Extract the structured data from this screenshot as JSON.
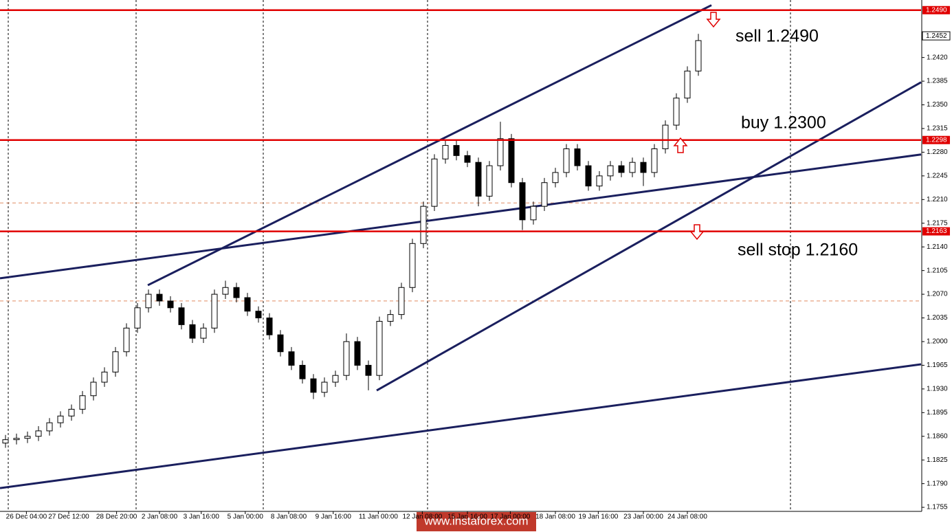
{
  "chart_data": {
    "type": "candlestick",
    "annotations": [
      "sell 1.2490",
      "buy 1.2300",
      "sell stop 1.2160"
    ],
    "watermark": "www.instaforex.com",
    "xlim": [
      -0.5,
      83.25
    ],
    "ylim": [
      1.1749,
      1.2505
    ],
    "yticks": [
      {
        "value": 1.242,
        "label": "1.2420"
      },
      {
        "value": 1.2385,
        "label": "1.2385"
      },
      {
        "value": 1.235,
        "label": "1.2350"
      },
      {
        "value": 1.2315,
        "label": "1.2315"
      },
      {
        "value": 1.228,
        "label": "1.2280"
      },
      {
        "value": 1.2245,
        "label": "1.2245"
      },
      {
        "value": 1.221,
        "label": "1.2210"
      },
      {
        "value": 1.2175,
        "label": "1.2175"
      },
      {
        "value": 1.214,
        "label": "1.2140"
      },
      {
        "value": 1.2105,
        "label": "1.2105"
      },
      {
        "value": 1.207,
        "label": "1.2070"
      },
      {
        "value": 1.2035,
        "label": "1.2035"
      },
      {
        "value": 1.2,
        "label": "1.2000"
      },
      {
        "value": 1.1965,
        "label": "1.1965"
      },
      {
        "value": 1.193,
        "label": "1.1930"
      },
      {
        "value": 1.1895,
        "label": "1.1895"
      },
      {
        "value": 1.186,
        "label": "1.1860"
      },
      {
        "value": 1.1825,
        "label": "1.1825"
      },
      {
        "value": 1.179,
        "label": "1.1790"
      },
      {
        "value": 1.1755,
        "label": "1.1755"
      }
    ],
    "xticks": [
      {
        "value": 1.9,
        "label": "26 Dec 04:00"
      },
      {
        "value": 5.75,
        "label": "27 Dec 12:00"
      },
      {
        "value": 10.1,
        "label": "28 Dec 20:00"
      },
      {
        "value": 14,
        "label": "2 Jan 08:00"
      },
      {
        "value": 17.8,
        "label": "3 Jan 16:00"
      },
      {
        "value": 21.8,
        "label": "5 Jan 00:00"
      },
      {
        "value": 25.75,
        "label": "8 Jan 08:00"
      },
      {
        "value": 29.8,
        "label": "9 Jan 16:00"
      },
      {
        "value": 33.9,
        "label": "11 Jan 00:00"
      },
      {
        "value": 37.9,
        "label": "12 Jan 08:00"
      },
      {
        "value": 42,
        "label": "15 Jan 16:00"
      },
      {
        "value": 45.9,
        "label": "17 Jan 00:00"
      },
      {
        "value": 50,
        "label": "18 Jan 08:00"
      },
      {
        "value": 53.9,
        "label": "19 Jan 16:00"
      },
      {
        "value": 58,
        "label": "23 Jan 00:00"
      },
      {
        "value": 62,
        "label": "24 Jan 08:00"
      }
    ],
    "candles": {
      "open": [
        1.185,
        1.1855,
        1.1857,
        1.186,
        1.1868,
        1.188,
        1.189,
        1.19,
        1.192,
        1.194,
        1.1955,
        1.1985,
        1.202,
        1.205,
        1.207,
        1.206,
        1.205,
        1.2025,
        1.2005,
        1.202,
        1.207,
        1.208,
        1.2065,
        1.2045,
        1.2035,
        1.201,
        1.1985,
        1.1965,
        1.1945,
        1.1925,
        1.194,
        1.195,
        1.2,
        1.1965,
        1.195,
        1.203,
        1.204,
        1.208,
        1.2145,
        1.22,
        1.227,
        1.229,
        1.2275,
        1.2265,
        1.2215,
        1.226,
        1.23,
        1.2235,
        1.218,
        1.22,
        1.2235,
        1.225,
        1.2285,
        1.226,
        1.223,
        1.2245,
        1.226,
        1.225,
        1.2265,
        1.225,
        1.2285,
        1.232,
        1.236,
        1.24
      ],
      "high": [
        1.1862,
        1.1864,
        1.1867,
        1.1875,
        1.1887,
        1.1897,
        1.1907,
        1.1927,
        1.1947,
        1.1962,
        1.1992,
        1.2027,
        1.2057,
        1.2077,
        1.2077,
        1.2067,
        1.2057,
        1.2032,
        1.2027,
        1.2077,
        1.209,
        1.2087,
        1.2072,
        1.2052,
        1.2042,
        1.2017,
        1.1992,
        1.1972,
        1.1952,
        1.1947,
        1.1957,
        1.2012,
        1.2007,
        1.1972,
        1.2037,
        1.2047,
        1.2087,
        1.2152,
        1.2207,
        1.2277,
        1.2297,
        1.2297,
        1.2282,
        1.2272,
        1.2267,
        1.2325,
        1.2307,
        1.2242,
        1.2207,
        1.2242,
        1.2257,
        1.2292,
        1.2292,
        1.2267,
        1.2252,
        1.2267,
        1.2267,
        1.2272,
        1.2272,
        1.2292,
        1.2327,
        1.2367,
        1.2407,
        1.2455
      ],
      "low": [
        1.1843,
        1.1848,
        1.185,
        1.1853,
        1.1861,
        1.1873,
        1.1883,
        1.1893,
        1.1913,
        1.1933,
        1.1948,
        1.1978,
        1.2013,
        1.2043,
        1.2053,
        1.2043,
        1.2018,
        1.1998,
        1.1998,
        1.2013,
        1.2063,
        1.2058,
        1.2038,
        1.2028,
        1.2003,
        1.1978,
        1.1958,
        1.1938,
        1.1915,
        1.1918,
        1.1933,
        1.1943,
        1.1958,
        1.1928,
        1.1943,
        1.2023,
        1.2033,
        1.2073,
        1.2138,
        1.2193,
        1.2263,
        1.2268,
        1.2258,
        1.22,
        1.2208,
        1.2253,
        1.2228,
        1.2165,
        1.2173,
        1.2193,
        1.2228,
        1.2243,
        1.2253,
        1.2223,
        1.2223,
        1.2238,
        1.2243,
        1.2243,
        1.223,
        1.2243,
        1.2278,
        1.2313,
        1.2353,
        1.2393
      ],
      "close": [
        1.1855,
        1.1857,
        1.186,
        1.1868,
        1.188,
        1.189,
        1.19,
        1.192,
        1.194,
        1.1955,
        1.1985,
        1.202,
        1.205,
        1.207,
        1.206,
        1.205,
        1.2025,
        1.2005,
        1.202,
        1.207,
        1.208,
        1.2065,
        1.2045,
        1.2035,
        1.201,
        1.1985,
        1.1965,
        1.1945,
        1.1925,
        1.194,
        1.195,
        1.2,
        1.1965,
        1.195,
        1.203,
        1.204,
        1.208,
        1.2145,
        1.22,
        1.227,
        1.229,
        1.2275,
        1.2265,
        1.2215,
        1.226,
        1.23,
        1.2235,
        1.218,
        1.22,
        1.2235,
        1.225,
        1.2285,
        1.226,
        1.223,
        1.2245,
        1.226,
        1.225,
        1.2265,
        1.225,
        1.2285,
        1.232,
        1.236,
        1.24,
        1.2445
      ]
    },
    "levels": [
      {
        "value": 1.249,
        "label": "1.2490"
      },
      {
        "value": 1.2298,
        "label": "1.2298"
      },
      {
        "value": 1.2163,
        "label": "1.2163"
      }
    ],
    "current_price": {
      "value": 1.2452,
      "label": "1.2452"
    },
    "dashed_levels": [
      1.2205,
      1.206
    ],
    "trendlines": [
      [
        [
          12.94,
          1.20834
        ],
        [
          64.19,
          1.24973
        ]
      ],
      [
        [
          33.75,
          1.19278
        ],
        [
          83.25,
          1.23834
        ]
      ],
      [
        [
          -0.5,
          1.20936
        ],
        [
          83.25,
          1.22766
        ]
      ],
      [
        [
          -0.5,
          1.17834
        ],
        [
          83.25,
          1.19665
        ]
      ]
    ],
    "up_color": "#ffffff",
    "down_color": "#000000",
    "level_color": "#e00000",
    "trend_color": "#1a1f5e",
    "dashed_color": "#e08a60"
  }
}
